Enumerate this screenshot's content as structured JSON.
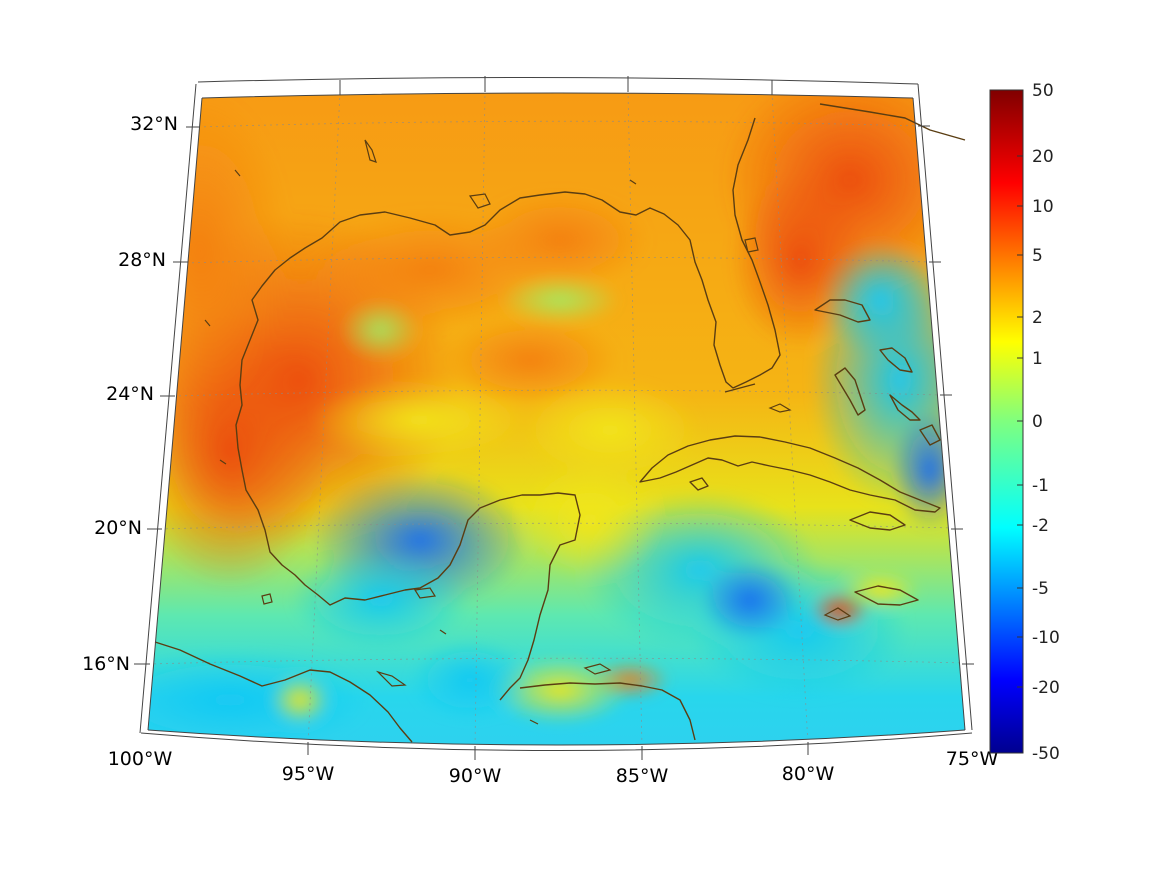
{
  "map": {
    "projection": "conic",
    "region": "Gulf of Mexico and Caribbean",
    "lon_range": [
      -100,
      -75
    ],
    "lat_range": [
      14,
      33
    ],
    "lon_labels": [
      "100°W",
      "95°W",
      "90°W",
      "85°W",
      "80°W",
      "75°W"
    ],
    "lat_labels": [
      "32°N",
      "28°N",
      "24°N",
      "20°N",
      "16°N"
    ],
    "coastline_color": "#5a3d12",
    "field_description_colors": {
      "high": "#e84a10",
      "mid": "#f5c400",
      "low": "#18d8f0",
      "lowest": "#1e6bff"
    }
  },
  "colorbar": {
    "colormap": "jet",
    "scale": "symmetric-log",
    "labels": [
      "50",
      "20",
      "10",
      "5",
      "2",
      "1",
      "0",
      "-1",
      "-2",
      "-5",
      "-10",
      "-20",
      "-50"
    ],
    "range": [
      -50,
      50
    ]
  }
}
